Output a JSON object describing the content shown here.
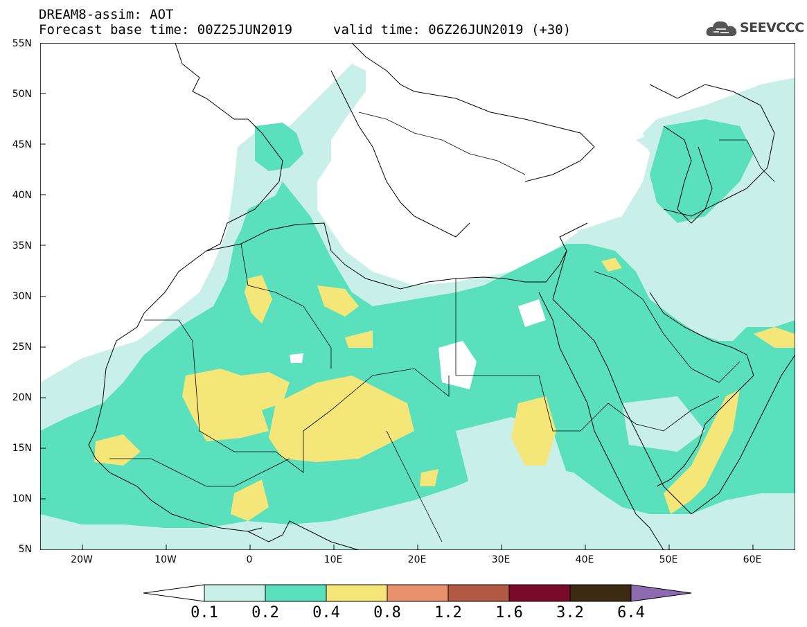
{
  "header": {
    "title": "DREAM8-assim: AOT",
    "base_time": "Forecast base time: 00Z25JUN2019",
    "valid_time": "valid time: 06Z26JUN2019 (+30)"
  },
  "logo": {
    "text": "SEEVCCC",
    "icon": "cloud-icon"
  },
  "map": {
    "extent": {
      "lon": [
        -25,
        65
      ],
      "lat": [
        5,
        55
      ]
    },
    "lat_labels": [
      "55N",
      "50N",
      "45N",
      "40N",
      "35N",
      "30N",
      "25N",
      "20N",
      "15N",
      "10N",
      "5N"
    ],
    "lon_labels": [
      "20W",
      "10W",
      "0",
      "10E",
      "20E",
      "30E",
      "40E",
      "50E",
      "60E"
    ]
  },
  "colorbar": {
    "labels": [
      "0.1",
      "0.2",
      "0.4",
      "0.8",
      "1.2",
      "1.6",
      "3.2",
      "6.4"
    ],
    "colors": [
      "#ffffff",
      "#c8f0e8",
      "#5ae0bc",
      "#f5e67a",
      "#e8916a",
      "#b35a44",
      "#7a0a2a",
      "#3d2a12",
      "#8e6bb0"
    ]
  }
}
